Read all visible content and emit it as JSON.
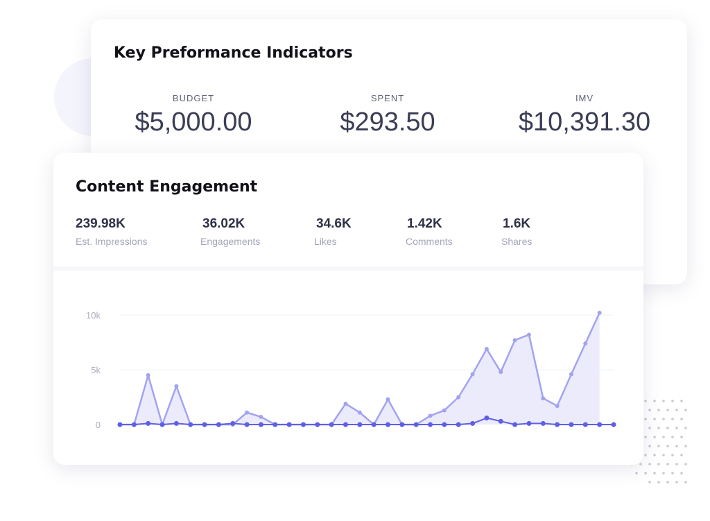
{
  "kpi": {
    "title": "Key Preformance Indicators",
    "items": [
      {
        "label": "BUDGET",
        "value": "$5,000.00"
      },
      {
        "label": "SPENT",
        "value": "$293.50"
      },
      {
        "label": "IMV",
        "value": "$10,391.30"
      }
    ]
  },
  "engagement": {
    "title": "Content Engagement",
    "metrics": [
      {
        "value": "239.98K",
        "label": "Est. Impressions"
      },
      {
        "value": "36.02K",
        "label": "Engagements"
      },
      {
        "value": "34.6K",
        "label": "Likes"
      },
      {
        "value": "1.42K",
        "label": "Comments"
      },
      {
        "value": "1.6K",
        "label": "Shares"
      }
    ]
  },
  "colors": {
    "impressions_line": "#a3a3f0",
    "impressions_fill": "#ecebfc",
    "engagements_line": "#5f5fe6",
    "grid": "#eef0f4"
  },
  "chart_data": {
    "type": "area",
    "yticks": [
      {
        "value": 10000,
        "label": "10k"
      },
      {
        "value": 5000,
        "label": "5k"
      },
      {
        "value": 0,
        "label": "0"
      }
    ],
    "ylim": [
      0,
      10000
    ],
    "grid": true,
    "x": [
      1,
      2,
      3,
      4,
      5,
      6,
      7,
      8,
      9,
      10,
      11,
      12,
      13,
      14,
      15,
      16,
      17,
      18,
      19,
      20,
      21,
      22,
      23,
      24,
      25,
      26,
      27,
      28,
      29,
      30,
      31,
      32,
      33,
      34,
      35,
      36
    ],
    "series": [
      {
        "values": [
          0,
          0,
          4500,
          0,
          3500,
          0,
          0,
          0,
          0,
          1100,
          700,
          0,
          0,
          0,
          0,
          0,
          1900,
          1100,
          0,
          2300,
          0,
          0,
          800,
          1300,
          2500,
          4600,
          6900,
          4800,
          7700,
          8200,
          2400,
          1700,
          4600,
          7400,
          10200,
          null
        ],
        "area": true
      },
      {
        "values": [
          0,
          0,
          100,
          0,
          100,
          0,
          0,
          0,
          100,
          0,
          0,
          0,
          0,
          0,
          0,
          0,
          0,
          0,
          0,
          0,
          0,
          0,
          0,
          0,
          0,
          100,
          600,
          300,
          0,
          100,
          100,
          0,
          0,
          0,
          0,
          0
        ]
      }
    ]
  }
}
